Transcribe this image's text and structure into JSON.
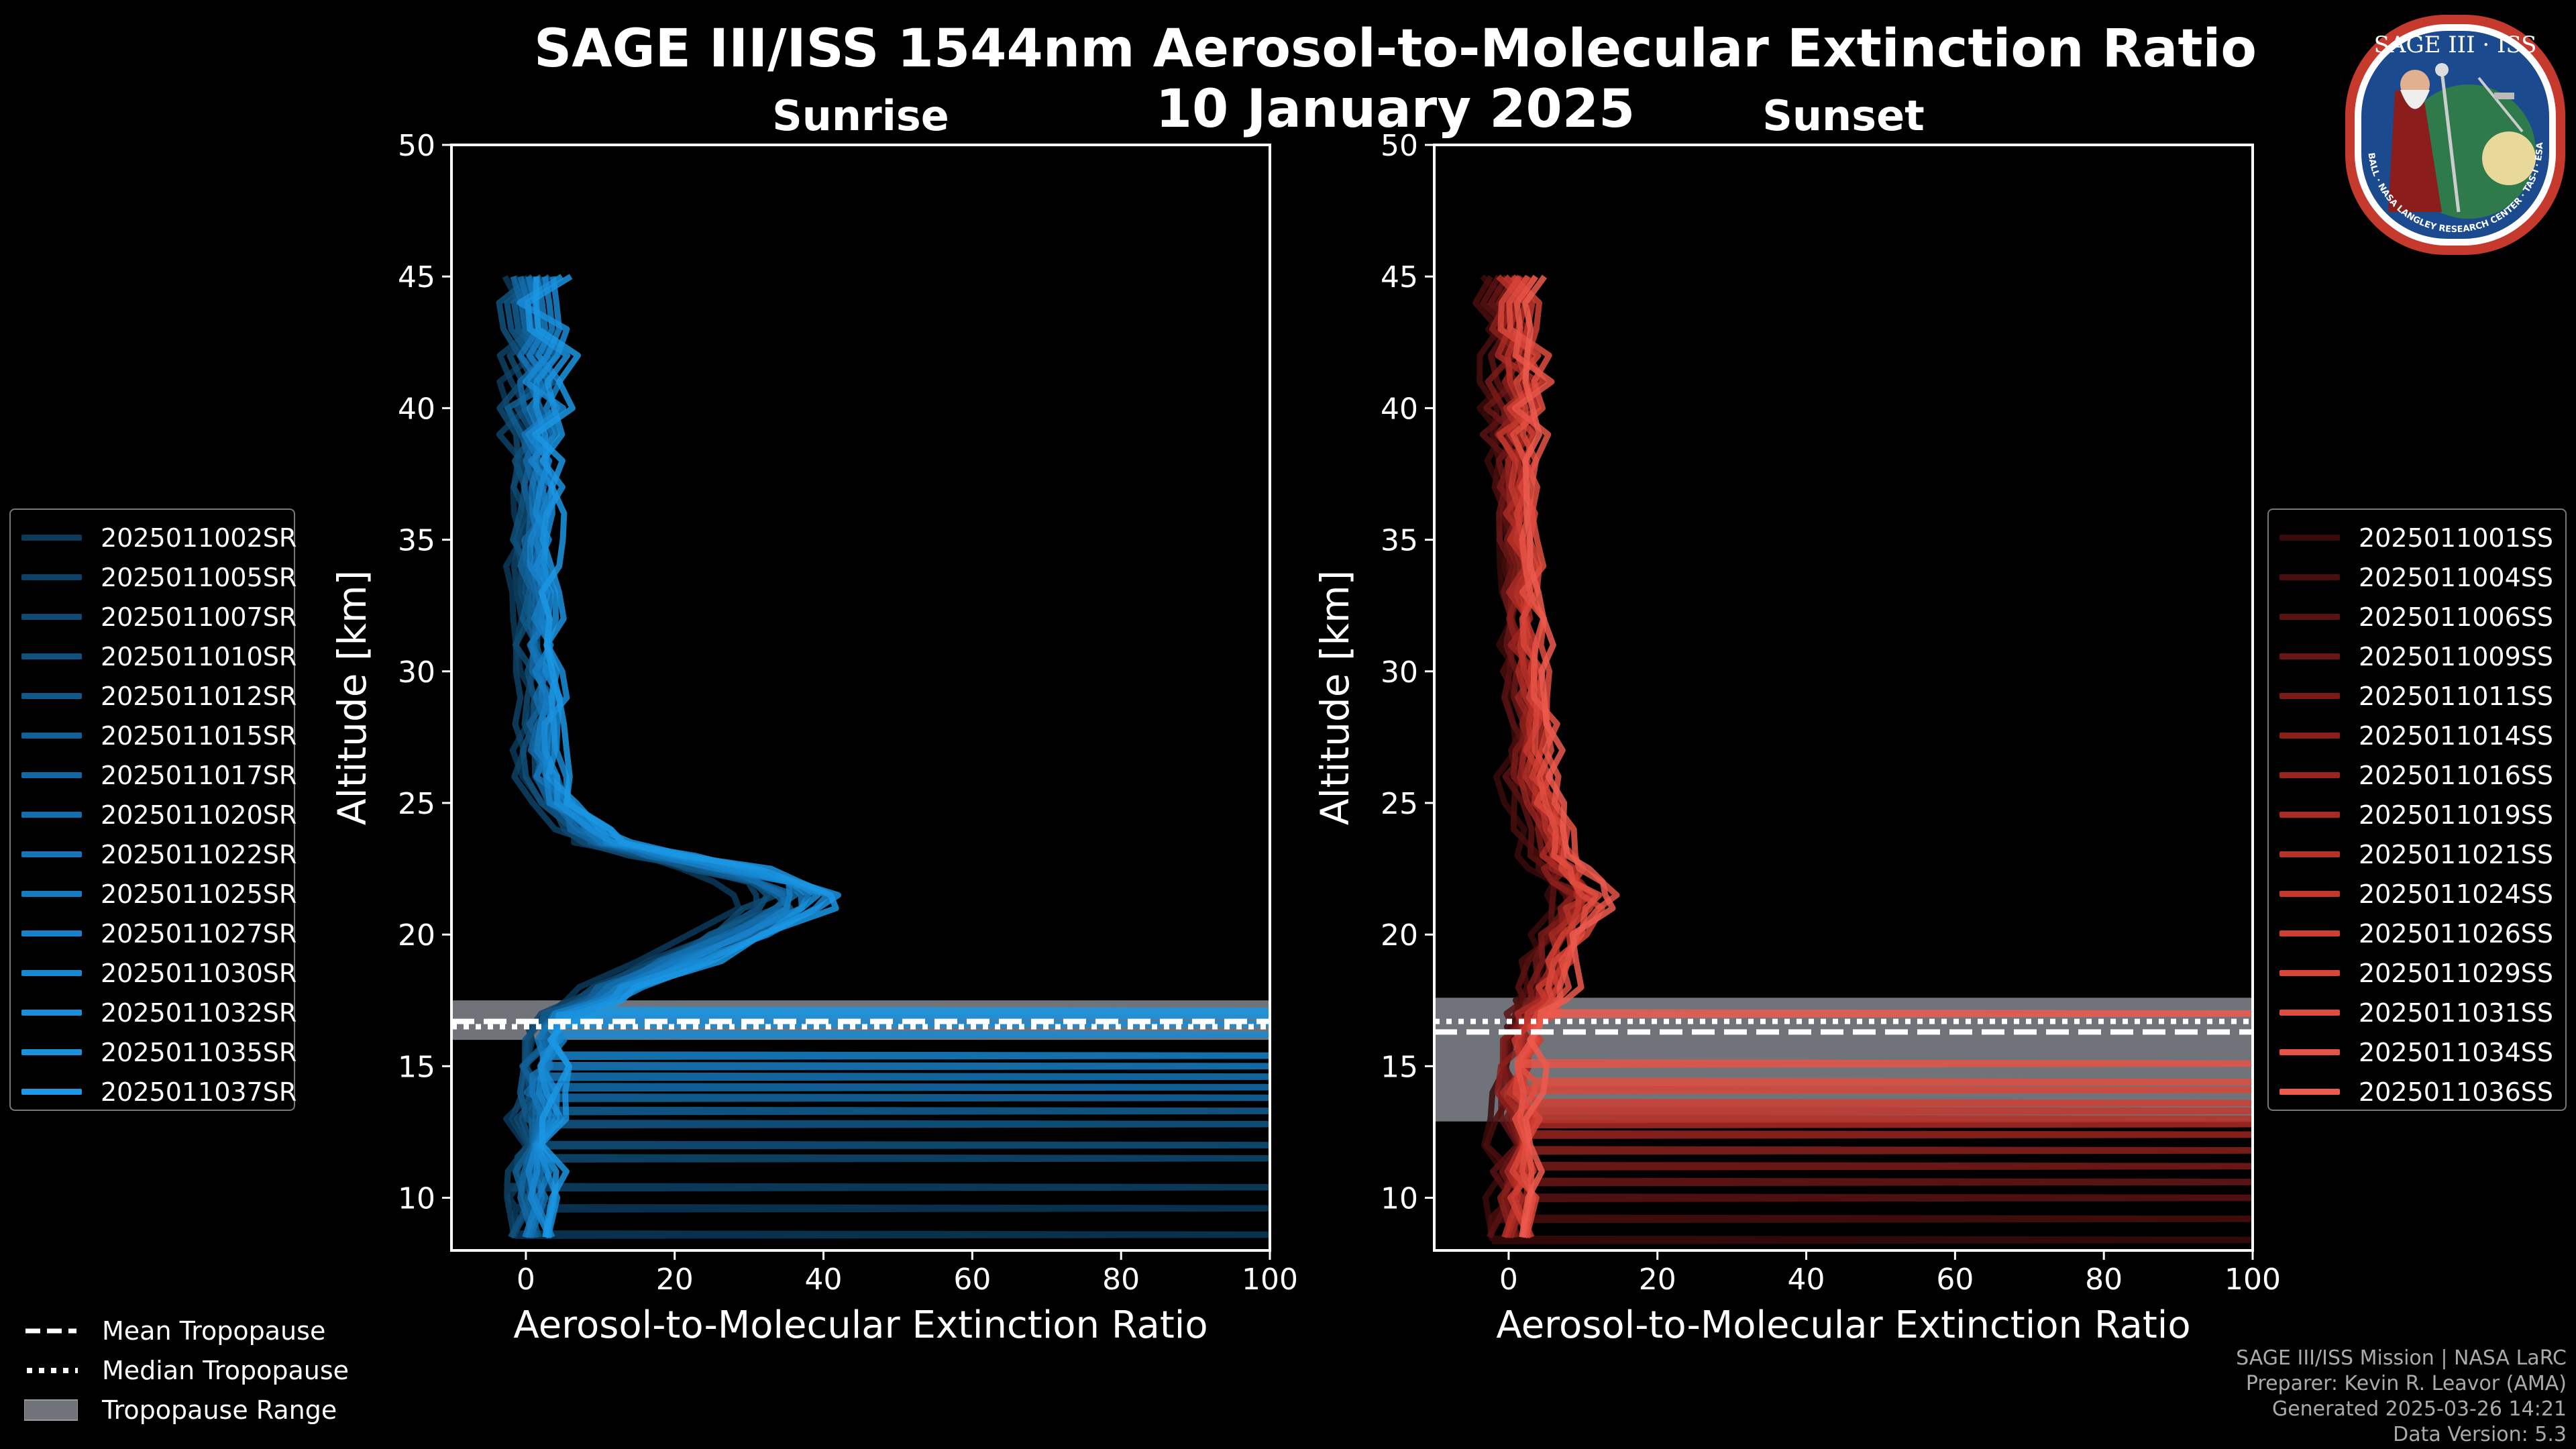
{
  "header": {
    "title": "SAGE III/ISS 1544nm Aerosol-to-Molecular Extinction Ratio",
    "date": "10 January 2025"
  },
  "panels": {
    "left": {
      "subtitle": "Sunrise"
    },
    "right": {
      "subtitle": "Sunset"
    }
  },
  "tropopause_legend": {
    "mean": "Mean Tropopause",
    "median": "Median Tropopause",
    "range": "Tropopause Range"
  },
  "credits": {
    "mission": "SAGE III/ISS Mission | NASA LaRC",
    "preparer": "Preparer: Kevin R. Leavor (AMA)",
    "generated": "Generated 2025-03-26 14:21",
    "version": "Data Version: 5.3"
  },
  "logo": {
    "text": "SAGE III · ISS",
    "ring_text": "BALL · NASA LANGLEY RESEARCH CENTER · TAS-I · ESA"
  },
  "colors": {
    "background": "#000000",
    "sunrise": "#1c8fd6",
    "sunset": "#e8554a",
    "tropopause_band": "#70747a"
  },
  "chart_data": [
    {
      "type": "line",
      "title": "Sunrise",
      "xlabel": "Aerosol-to-Molecular Extinction Ratio",
      "ylabel": "Altitude [km]",
      "xlim": [
        -10,
        100
      ],
      "ylim": [
        8,
        50
      ],
      "xticks": [
        0,
        20,
        40,
        60,
        80,
        100
      ],
      "yticks": [
        10,
        15,
        20,
        25,
        30,
        35,
        40,
        45,
        50
      ],
      "tropopause": {
        "mean": 16.7,
        "median": 16.5,
        "range": [
          16.0,
          17.5
        ]
      },
      "series_names": [
        "2025011002SR",
        "2025011005SR",
        "2025011007SR",
        "2025011010SR",
        "2025011012SR",
        "2025011015SR",
        "2025011017SR",
        "2025011020SR",
        "2025011022SR",
        "2025011025SR",
        "2025011027SR",
        "2025011030SR",
        "2025011032SR",
        "2025011035SR",
        "2025011037SR"
      ],
      "series_colors": [
        "#0b3a5a",
        "#0d4266",
        "#0f4a72",
        "#10517e",
        "#11598a",
        "#126096",
        "#1367a2",
        "#146eae",
        "#1575b8",
        "#167cc2",
        "#1782cb",
        "#1888d2",
        "#198dd8",
        "#1a92de",
        "#1b97e3"
      ],
      "mean_profile": {
        "altitude": [
          8.5,
          10,
          11,
          12,
          13,
          14,
          15,
          16,
          16.5,
          17,
          17.5,
          18,
          19,
          20,
          21,
          21.5,
          22,
          22.5,
          23,
          23.5,
          24,
          25,
          26,
          27,
          28,
          29,
          30,
          31,
          32,
          33,
          34,
          35,
          36,
          37,
          38,
          39,
          40,
          41,
          42,
          43,
          44,
          45
        ],
        "ratio": [
          1,
          1,
          1,
          1.5,
          1.5,
          2,
          2,
          2.5,
          3,
          5,
          8,
          12,
          20,
          28,
          35,
          36,
          33,
          26,
          18,
          11,
          8,
          4,
          2.5,
          2,
          2,
          2.5,
          2,
          1.5,
          1.5,
          1,
          1,
          1,
          1.5,
          1.5,
          1,
          1.5,
          1,
          1.5,
          1.5,
          1,
          0.5,
          1
        ]
      },
      "series_offsets": [
        -2.5,
        -2,
        -1.6,
        -1.2,
        -0.8,
        -0.5,
        -0.2,
        0,
        0.3,
        0.6,
        0.9,
        1.2,
        1.6,
        2,
        2.5
      ],
      "spike_altitudes": [
        [
          8.6,
          9.6
        ],
        [
          10.4
        ],
        [
          11.5
        ],
        [
          12.0
        ],
        [
          12.8
        ],
        [
          13.3
        ],
        [
          13.8
        ],
        [
          14.2
        ],
        [
          14.6
        ],
        [
          15.0
        ],
        [
          15.4
        ],
        [
          16.2
        ],
        [
          16.6
        ],
        [
          16.9
        ],
        [
          17.1
        ]
      ]
    },
    {
      "type": "line",
      "title": "Sunset",
      "xlabel": "Aerosol-to-Molecular Extinction Ratio",
      "ylabel": "Altitude [km]",
      "xlim": [
        -10,
        100
      ],
      "ylim": [
        8,
        50
      ],
      "xticks": [
        0,
        20,
        40,
        60,
        80,
        100
      ],
      "yticks": [
        10,
        15,
        20,
        25,
        30,
        35,
        40,
        45,
        50
      ],
      "tropopause": {
        "mean": 16.3,
        "median": 16.7,
        "range": [
          12.9,
          17.6
        ]
      },
      "series_names": [
        "2025011001SS",
        "2025011004SS",
        "2025011006SS",
        "2025011009SS",
        "2025011011SS",
        "2025011014SS",
        "2025011016SS",
        "2025011019SS",
        "2025011021SS",
        "2025011024SS",
        "2025011026SS",
        "2025011029SS",
        "2025011031SS",
        "2025011034SS",
        "2025011036SS"
      ],
      "series_colors": [
        "#3a0a0a",
        "#4a0e0e",
        "#5a1212",
        "#6a1616",
        "#7a1b19",
        "#8a201c",
        "#9a2520",
        "#a92b24",
        "#b73128",
        "#c4372d",
        "#cf3e33",
        "#d84539",
        "#e04d40",
        "#e65447",
        "#ec5b4e"
      ],
      "mean_profile": {
        "altitude": [
          8.5,
          10,
          11,
          12,
          13,
          14,
          15,
          16,
          16.5,
          17,
          17.5,
          18,
          19,
          20,
          21,
          21.5,
          22,
          22.5,
          23,
          24,
          25,
          26,
          27,
          28,
          29,
          30,
          31,
          32,
          33,
          34,
          35,
          36,
          37,
          38,
          39,
          40,
          41,
          42,
          43,
          44,
          45
        ],
        "ratio": [
          1,
          1,
          1,
          1,
          1,
          1,
          1,
          1.5,
          2,
          3,
          4,
          5,
          6,
          7,
          9,
          10,
          8,
          7,
          6,
          5,
          4,
          3,
          3,
          3,
          2.5,
          2.5,
          2,
          2,
          1.5,
          1.5,
          1,
          1,
          1,
          1,
          1,
          1,
          1,
          1,
          0.5,
          0.5,
          1
        ]
      },
      "series_offsets": [
        -2.5,
        -2,
        -1.6,
        -1.2,
        -0.8,
        -0.5,
        -0.2,
        0,
        0.3,
        0.6,
        0.9,
        1.2,
        1.6,
        2,
        2.5
      ],
      "spike_altitudes": [
        [
          8.4
        ],
        [
          9.2
        ],
        [
          10.0
        ],
        [
          10.6
        ],
        [
          11.2
        ],
        [
          11.8
        ],
        [
          12.4
        ],
        [
          12.8
        ],
        [
          13.0
        ],
        [
          13.3
        ],
        [
          13.6
        ],
        [
          14.1
        ],
        [
          14.4
        ],
        [
          15.1
        ],
        [
          17.0
        ]
      ]
    }
  ]
}
